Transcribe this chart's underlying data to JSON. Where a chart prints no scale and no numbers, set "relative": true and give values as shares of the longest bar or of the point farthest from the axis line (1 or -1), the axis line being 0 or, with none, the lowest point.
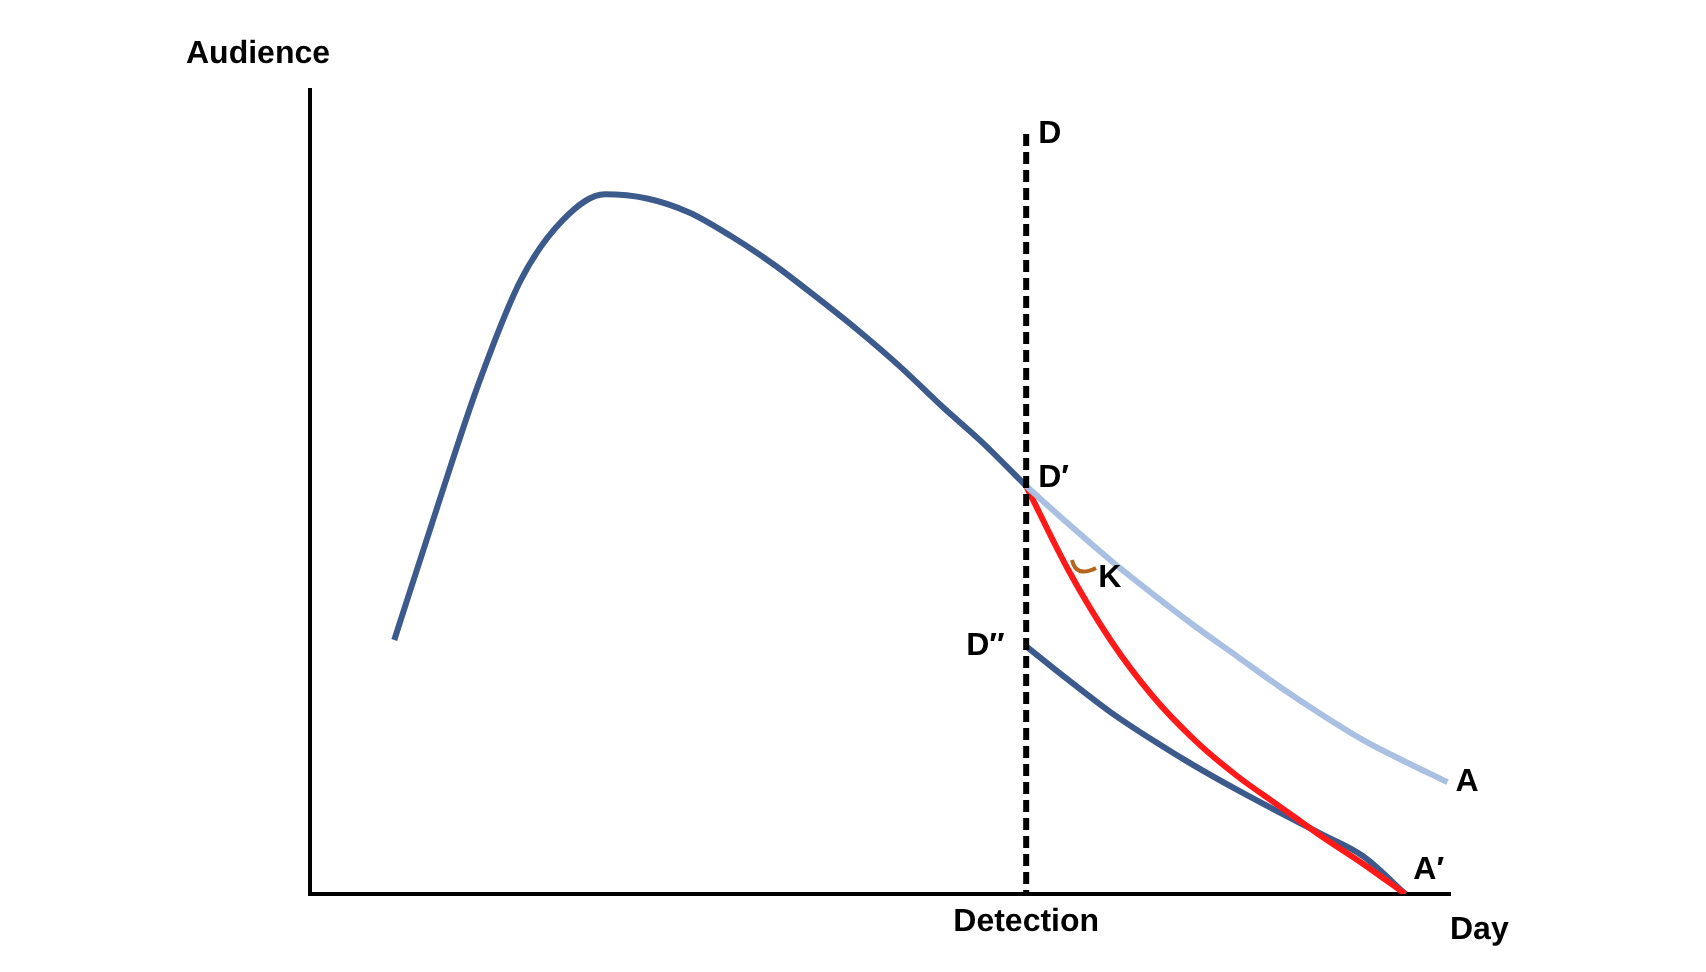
{
  "chart_data": {
    "type": "line",
    "relative": true,
    "legend": false,
    "marker": "none",
    "xlabel": "Day",
    "ylabel": "Audience",
    "categories": [
      null,
      null,
      null,
      null,
      null,
      null,
      null,
      null,
      null,
      null,
      null,
      null,
      null,
      null,
      null,
      null,
      null,
      null,
      null,
      null,
      null,
      null,
      null,
      null,
      null,
      null
    ],
    "series": [
      {
        "color": "#3c5a8c",
        "values": [
          0.363,
          0.549,
          0.729,
          0.877,
          0.963,
          1,
          0.994,
          0.974,
          0.94,
          0.9,
          0.854,
          0.806,
          0.754,
          0.697,
          0.643,
          0.583,
          null,
          null,
          null,
          null,
          null,
          null,
          null,
          null,
          null,
          null
        ]
      },
      {
        "name": "A",
        "color": "#a9c0e2",
        "values": [
          null,
          null,
          null,
          null,
          null,
          null,
          null,
          null,
          null,
          null,
          null,
          null,
          null,
          null,
          null,
          0.583,
          0.529,
          0.477,
          0.429,
          0.383,
          0.34,
          0.297,
          0.257,
          0.22,
          0.189,
          0.16
        ]
      },
      {
        "name": "A′",
        "color": "#ff1a1a",
        "values": [
          null,
          null,
          null,
          null,
          null,
          null,
          null,
          null,
          null,
          null,
          null,
          null,
          null,
          null,
          null,
          0.583,
          0.463,
          0.363,
          0.283,
          0.22,
          0.169,
          0.126,
          0.083,
          0.043,
          0,
          null
        ]
      },
      {
        "color": "#3c5a8c",
        "values": [
          null,
          null,
          null,
          null,
          null,
          null,
          null,
          null,
          null,
          null,
          null,
          null,
          null,
          null,
          null,
          0.354,
          0.306,
          0.26,
          0.22,
          0.183,
          0.149,
          0.117,
          0.086,
          0.054,
          0,
          null
        ]
      }
    ],
    "annotations": [
      "D",
      "D′",
      "D″",
      "K",
      "Detection"
    ]
  }
}
